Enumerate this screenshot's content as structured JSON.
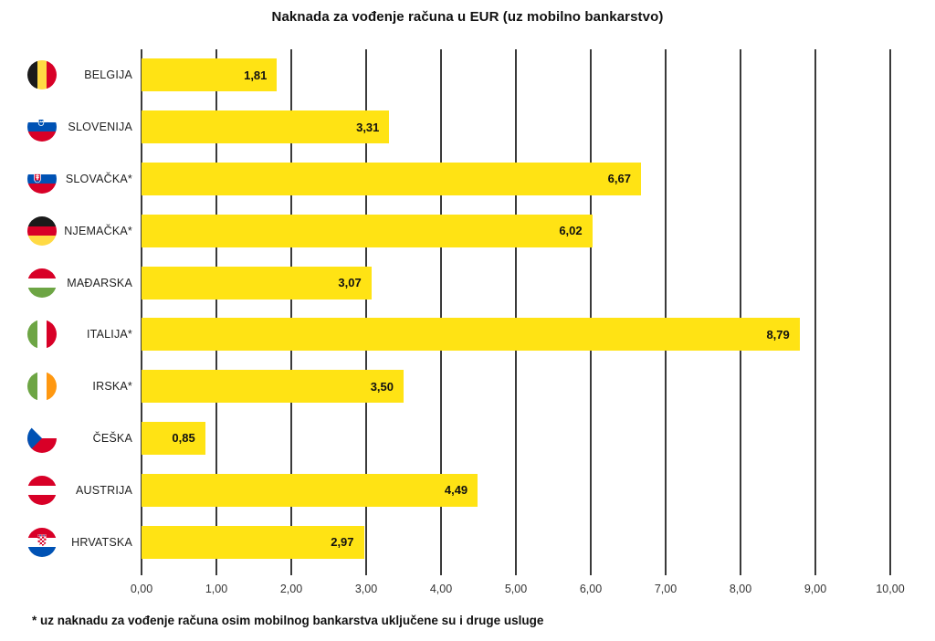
{
  "page": {
    "title": "Naknada za vođenje računa u EUR (uz mobilno bankarstvo)"
  },
  "footnote": "* uz naknadu za vođenje računa osim mobilnog bankarstva uključene su i druge usluge",
  "colors": {
    "bar": "#FFE314",
    "gridline": "#3A3A3A",
    "text": "#111111",
    "tick_text": "#333333"
  },
  "chart_data": {
    "type": "bar",
    "orientation": "horizontal",
    "title": "Naknada za vođenje računa u EUR (uz mobilno bankarstvo)",
    "categories": [
      "BELGIJA",
      "SLOVENIJA",
      "SLOVAČKA*",
      "NJEMAČKA*",
      "MAĐARSKA",
      "ITALIJA*",
      "IRSKA*",
      "ČEŠKA",
      "AUSTRIJA",
      "HRVATSKA"
    ],
    "values": [
      1.81,
      3.31,
      6.67,
      6.02,
      3.07,
      8.79,
      3.5,
      0.85,
      4.49,
      2.97
    ],
    "value_labels": [
      "1,81",
      "3,31",
      "6,67",
      "6,02",
      "3,07",
      "8,79",
      "3,50",
      "0,85",
      "4,49",
      "2,97"
    ],
    "flag_icons": [
      "belgium-flag-icon",
      "slovenia-flag-icon",
      "slovakia-flag-icon",
      "germany-flag-icon",
      "hungary-flag-icon",
      "italy-flag-icon",
      "ireland-flag-icon",
      "czechia-flag-icon",
      "austria-flag-icon",
      "croatia-flag-icon"
    ],
    "x_ticks": [
      "0,00",
      "1,00",
      "2,00",
      "3,00",
      "4,00",
      "5,00",
      "6,00",
      "7,00",
      "8,00",
      "9,00",
      "10,00"
    ],
    "xlim": [
      0,
      10
    ],
    "grid": "vertical-only",
    "legend": "none",
    "bar_color": "#FFE314",
    "footnote": "* uz naknadu za vođenje računa osim mobilnog bankarstva uključene su i druge usluge"
  }
}
